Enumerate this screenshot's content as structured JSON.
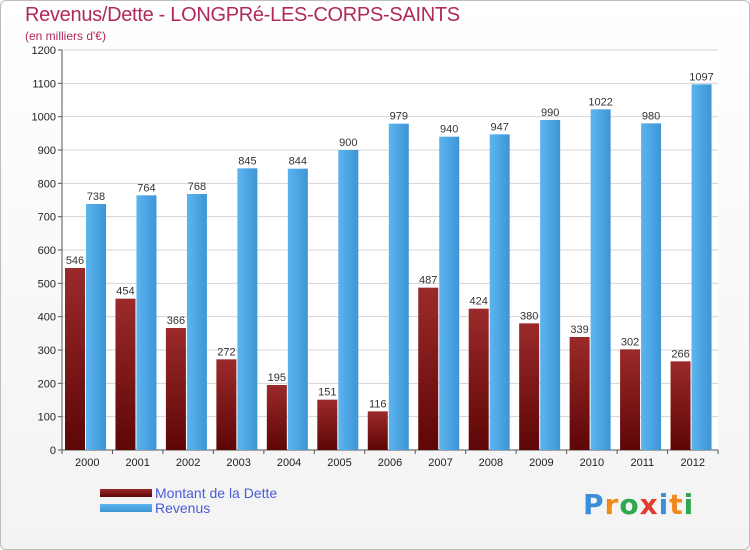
{
  "chart_data": {
    "type": "bar",
    "title": "Revenus/Dette - LONGPRé-LES-CORPS-SAINTS",
    "subtitle": "(en milliers d'€)",
    "categories": [
      "2000",
      "2001",
      "2002",
      "2003",
      "2004",
      "2005",
      "2006",
      "2007",
      "2008",
      "2009",
      "2010",
      "2011",
      "2012"
    ],
    "series": [
      {
        "name": "Montant de la Dette",
        "color": "#8b1a1a",
        "values": [
          546,
          454,
          366,
          272,
          195,
          151,
          116,
          487,
          424,
          380,
          339,
          302,
          266
        ]
      },
      {
        "name": "Revenus",
        "color": "#4aa3e0",
        "values": [
          738,
          764,
          768,
          845,
          844,
          900,
          979,
          940,
          947,
          990,
          1022,
          980,
          1097
        ]
      }
    ],
    "ylim": [
      0,
      1200
    ],
    "yticks": [
      0,
      100,
      200,
      300,
      400,
      500,
      600,
      700,
      800,
      900,
      1000,
      1100,
      1200
    ],
    "grid": true,
    "legend_position": "bottom-left"
  },
  "logo": {
    "letters": [
      "P",
      "r",
      "o",
      "x",
      "i",
      "t",
      "i"
    ],
    "colors": [
      "#3b8fd9",
      "#f08a1c",
      "#2fa84f",
      "#e23b2f",
      "#3b8fd9",
      "#f08a1c",
      "#2fa84f"
    ]
  }
}
